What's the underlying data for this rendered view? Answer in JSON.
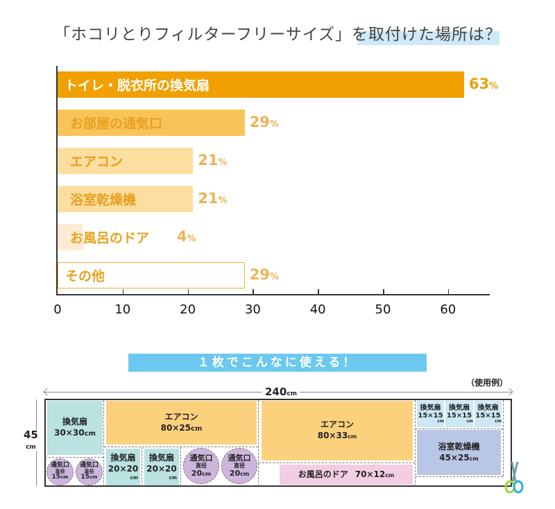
{
  "title": {
    "main": "「ホコリとりフィルターフリーサイズ」を取付けた場所は？"
  },
  "chart_data": {
    "type": "bar",
    "orientation": "horizontal",
    "title": "「ホコリとりフィルターフリーサイズ」を取付けた場所は？",
    "categories": [
      "トイレ・脱衣所の換気扇",
      "お部屋の通気口",
      "エアコン",
      "浴室乾燥機",
      "お風呂のドア",
      "その他"
    ],
    "values": [
      63,
      29,
      21,
      21,
      4,
      29
    ],
    "value_labels": [
      "63",
      "29",
      "21",
      "21",
      "4",
      "29"
    ],
    "unit": "%",
    "xlim": [
      0,
      66
    ],
    "xticks": [
      "0",
      "10",
      "20",
      "30",
      "40",
      "50",
      "60"
    ],
    "grid": false,
    "colors": [
      "#f0a000",
      "#f8c45a",
      "#fbdea0",
      "#fbdea0",
      "#fdebd3",
      "#ffffff"
    ],
    "outline_color": "#f0b030"
  },
  "banner": {
    "text": "１枚でこんなに使える！",
    "color": "#6cc8ee"
  },
  "example": {
    "label": "（使用例）",
    "width_label": "240",
    "height_label": "45",
    "unit": "cm",
    "cells": {
      "fan30": {
        "name": "換気扇",
        "size": "30×30",
        "unit": "cm"
      },
      "ac80x25": {
        "name": "エアコン",
        "size": "80×25",
        "unit": "cm"
      },
      "fan20a": {
        "name": "換気扇",
        "size": "20×20",
        "unit": "cm"
      },
      "fan20b": {
        "name": "換気扇",
        "size": "20×20",
        "unit": "cm"
      },
      "vent20a": {
        "name": "通気口",
        "sub": "直径",
        "size": "20",
        "unit": "cm"
      },
      "vent20b": {
        "name": "通気口",
        "sub": "直径",
        "size": "20",
        "unit": "cm"
      },
      "vent15a": {
        "name": "通気口",
        "sub": "直径",
        "size": "15",
        "unit": "cm"
      },
      "vent15b": {
        "name": "通気口",
        "sub": "直径",
        "size": "15",
        "unit": "cm"
      },
      "ac80x33": {
        "name": "エアコン",
        "size": "80×33",
        "unit": "cm"
      },
      "door": {
        "name": "お風呂のドア",
        "size": "70×12",
        "unit": "cm"
      },
      "fan15a": {
        "name": "換気扇",
        "size": "15×15",
        "unit": "cm"
      },
      "fan15b": {
        "name": "換気扇",
        "size": "15×15",
        "unit": "cm"
      },
      "fan15c": {
        "name": "換気扇",
        "size": "15×15",
        "unit": "cm"
      },
      "dryer": {
        "name": "浴室乾燥機",
        "size": "45×25",
        "unit": "cm"
      }
    },
    "colors": {
      "fan": "#b9e2e0",
      "ac": "#fcd17e",
      "vent": "#cdb5dc",
      "door": "#f3cde2",
      "fan_small": "#cde8f5",
      "dryer": "#b9c6e6"
    }
  }
}
